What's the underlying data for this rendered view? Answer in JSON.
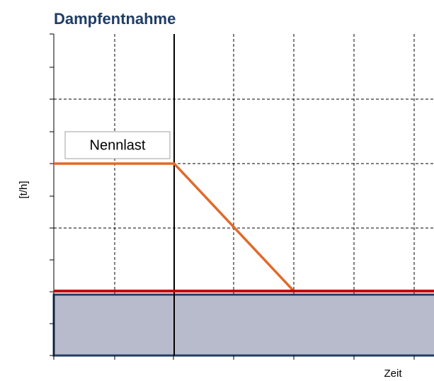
{
  "header": {
    "title": "Dampfentnahme"
  },
  "axes": {
    "y_label": "[t/h]",
    "x_label": "Zeit"
  },
  "annotations": {
    "nominal_load": "Nennlast"
  }
}
